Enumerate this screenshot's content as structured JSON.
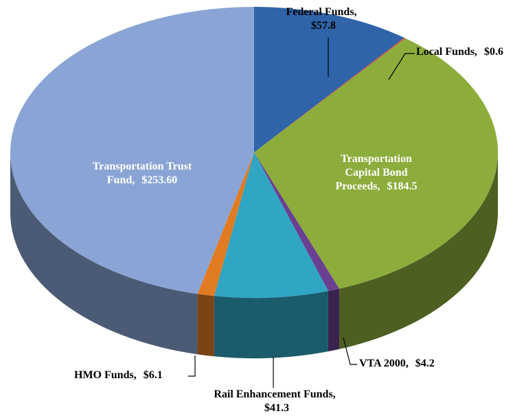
{
  "chart_data": {
    "type": "pie",
    "categories": [
      "Federal Funds,",
      "Local Funds,",
      "Transportation Capital Bond Proceeds,",
      "VTA 2000,",
      "Rail Enhancement Funds,",
      "HMO Funds,",
      "Transportation Trust Fund,"
    ],
    "values": [
      57.8,
      0.6,
      184.5,
      4.2,
      41.3,
      6.1,
      253.6
    ],
    "value_labels": [
      "$57.8",
      "$0.6",
      "$184.5",
      "$4.2",
      "$41.3",
      "$6.1",
      "$253.60"
    ],
    "colors": [
      "#2f64a9",
      "#c0504d",
      "#8cad3c",
      "#6a4190",
      "#30a5c4",
      "#e07b22",
      "#8aa5d5"
    ]
  }
}
